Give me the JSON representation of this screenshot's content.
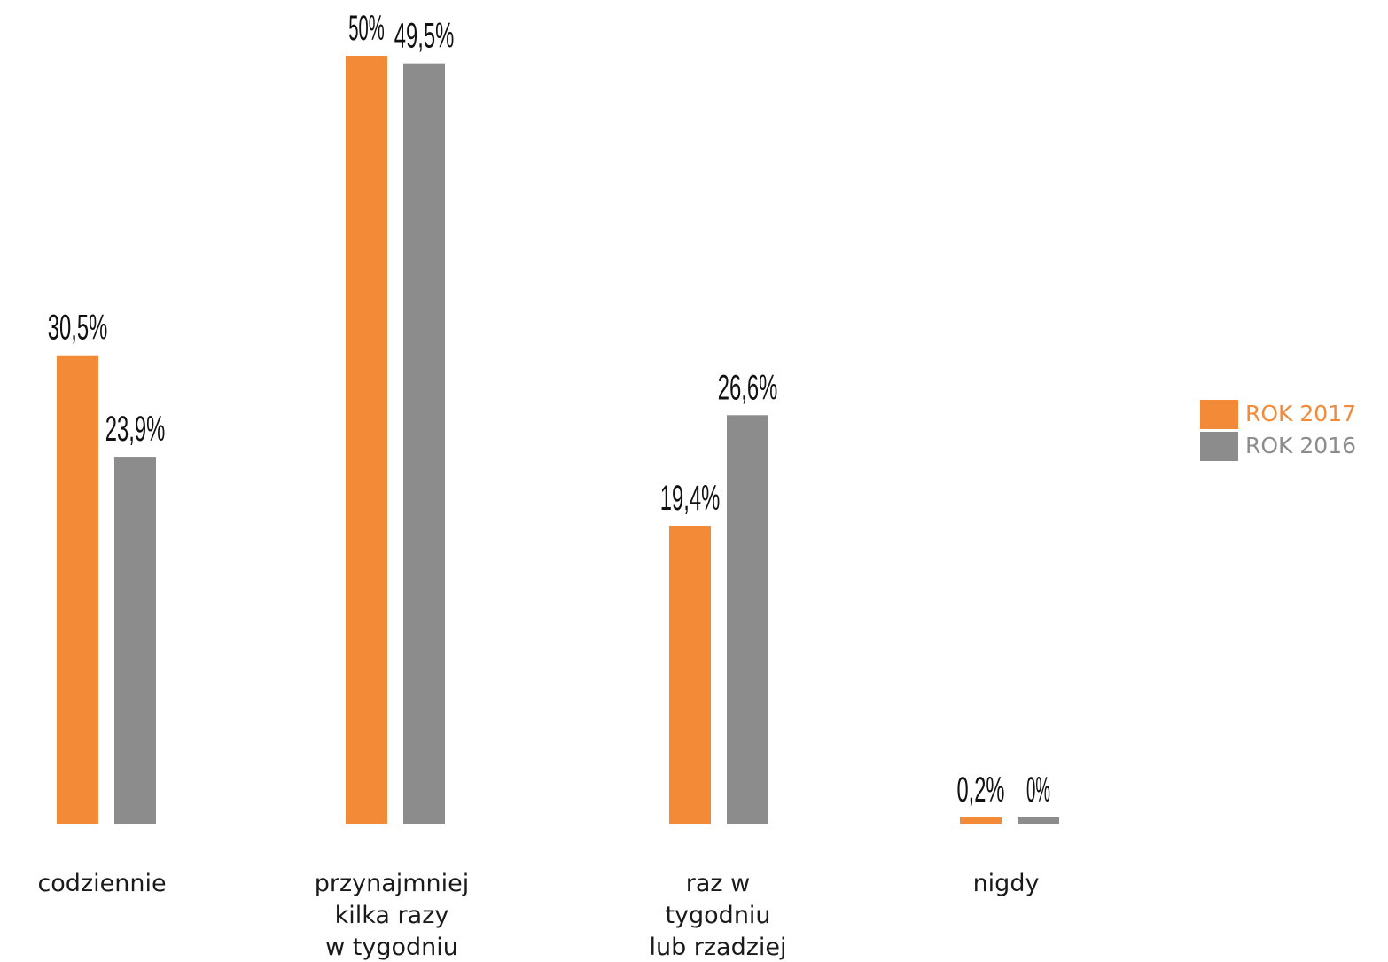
{
  "chart_data": {
    "type": "bar",
    "title": "",
    "xlabel": "",
    "ylabel": "",
    "ylim": [
      0,
      50
    ],
    "grid": false,
    "legend_position": "right",
    "categories": [
      [
        "codziennie"
      ],
      [
        "przynajmniej",
        "kilka razy",
        "w tygodniu"
      ],
      [
        "raz w",
        "tygodniu",
        "lub rzadziej"
      ],
      [
        "nigdy"
      ]
    ],
    "series": [
      {
        "name": "ROK 2017",
        "color": "#f28a38",
        "values": [
          30.5,
          50,
          19.4,
          0.2
        ],
        "labels": [
          "30,5%",
          "50%",
          "19,4%",
          "0,2%"
        ]
      },
      {
        "name": "ROK 2016",
        "color": "#8c8c8c",
        "values": [
          23.9,
          49.5,
          26.6,
          0
        ],
        "labels": [
          "23,9%",
          "49,5%",
          "26,6%",
          "0%"
        ]
      }
    ]
  }
}
